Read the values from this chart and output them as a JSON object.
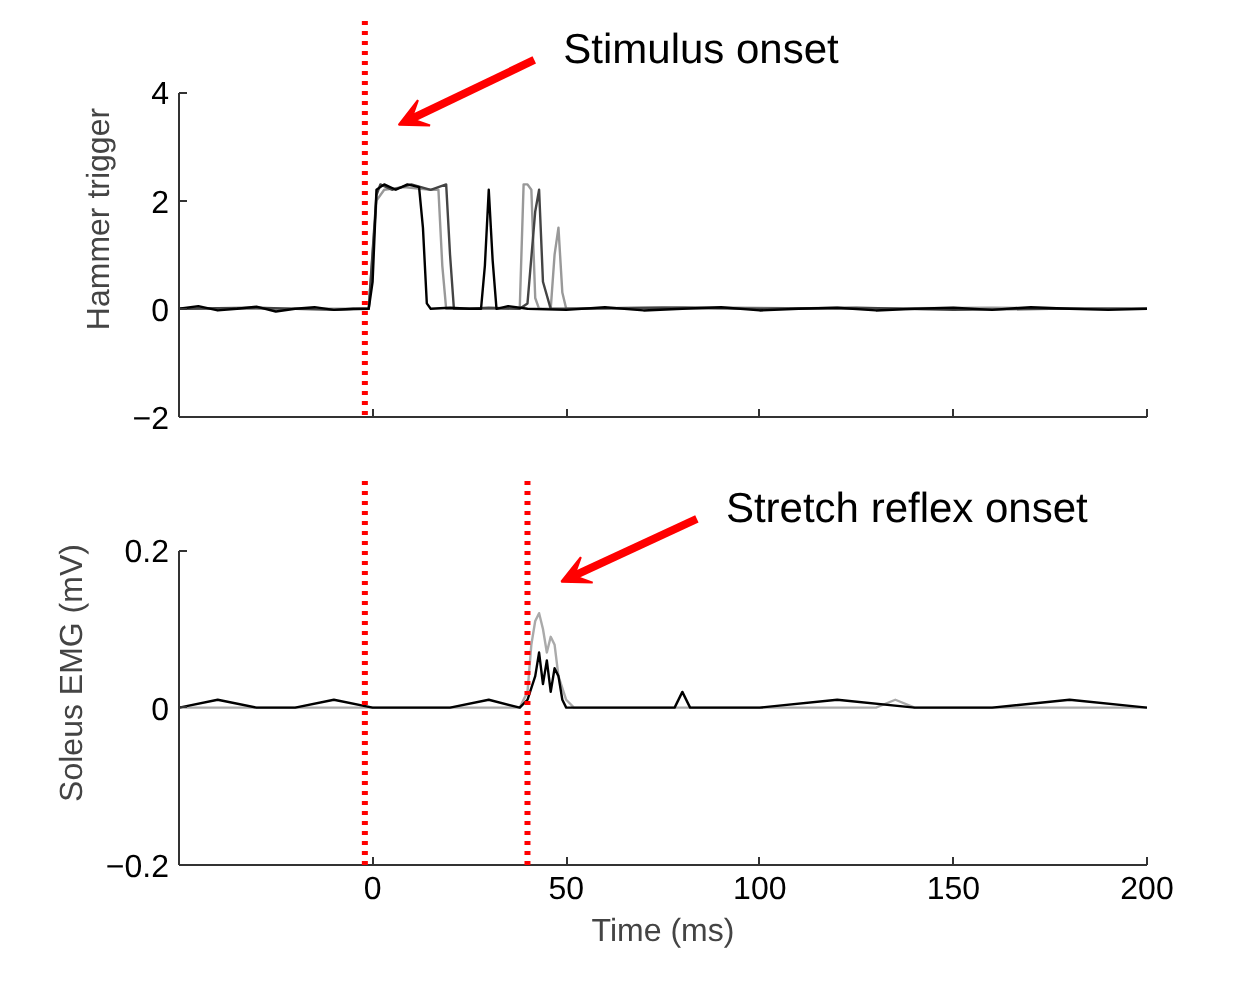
{
  "chart_data": [
    {
      "type": "line",
      "ylabel": "Hammer trigger",
      "xlim": [
        -50,
        200
      ],
      "xticks": [
        0,
        50,
        100,
        150,
        200
      ],
      "ylim": [
        -2,
        4
      ],
      "yticks": [
        -2,
        0,
        2,
        4
      ],
      "tick_labels": "y",
      "series": [
        {
          "color": "#999999",
          "x": [
            -50,
            -1,
            1,
            3,
            8,
            15,
            17,
            18,
            19,
            25,
            38,
            39,
            40,
            41,
            42,
            43,
            46,
            47,
            48,
            49,
            50,
            80,
            120,
            160,
            200
          ],
          "values": [
            0,
            0,
            2.0,
            2.2,
            2.25,
            2.2,
            2.2,
            0.8,
            0,
            0,
            0,
            2.3,
            2.3,
            2.2,
            0.2,
            0,
            0,
            1.0,
            1.5,
            0.3,
            0,
            0.03,
            0,
            0.02,
            0
          ]
        },
        {
          "color": "#444444",
          "x": [
            -50,
            -30,
            -10,
            -1,
            1,
            2,
            5,
            10,
            15,
            19,
            20,
            21,
            25,
            30,
            38,
            40,
            42,
            43,
            44,
            46,
            50,
            75,
            100,
            125,
            150,
            175,
            200
          ],
          "values": [
            0,
            0.02,
            -0.02,
            0,
            2.1,
            2.3,
            2.2,
            2.3,
            2.2,
            2.3,
            1.0,
            0,
            0,
            0.02,
            0,
            0.1,
            1.8,
            2.2,
            0.5,
            0,
            0,
            0.02,
            0,
            0.02,
            -0.02,
            0,
            0
          ]
        },
        {
          "color": "#000000",
          "x": [
            -50,
            -45,
            -40,
            -35,
            -30,
            -25,
            -20,
            -15,
            -10,
            -5,
            -1,
            0,
            1,
            3,
            6,
            9,
            12,
            13,
            14,
            15,
            20,
            25,
            28,
            29,
            30,
            31,
            32,
            35,
            40,
            50,
            60,
            70,
            80,
            90,
            100,
            110,
            120,
            130,
            140,
            150,
            160,
            170,
            180,
            190,
            200
          ],
          "values": [
            0,
            0.05,
            -0.03,
            0,
            0.04,
            -0.05,
            0,
            0.03,
            -0.02,
            0,
            0,
            0.5,
            2.2,
            2.3,
            2.2,
            2.3,
            2.25,
            1.5,
            0.1,
            0,
            0.02,
            0,
            0,
            0.8,
            2.2,
            0.9,
            0,
            0.05,
            0,
            -0.02,
            0.03,
            -0.03,
            0,
            0.03,
            -0.03,
            0,
            0.02,
            -0.03,
            0,
            0.02,
            -0.02,
            0.03,
            0,
            -0.02,
            0
          ]
        }
      ],
      "ref_lines": [
        {
          "axis": "x",
          "value": -2,
          "color": "#ff0000",
          "line_style": "dotted"
        }
      ],
      "annotations": [
        "Stimulus onset"
      ]
    },
    {
      "type": "line",
      "xlabel": "Time (ms)",
      "ylabel": "Soleus EMG (mV)",
      "xlim": [
        -50,
        200
      ],
      "xticks": [
        0,
        50,
        100,
        150,
        200
      ],
      "ylim": [
        -0.2,
        0.2
      ],
      "yticks": [
        -0.2,
        0,
        0.2
      ],
      "series": [
        {
          "color": "#aaaaaa",
          "x": [
            -50,
            0,
            38,
            40,
            41,
            42,
            43,
            44,
            45,
            46,
            47,
            48,
            50,
            52,
            100,
            130,
            135,
            140,
            200
          ],
          "values": [
            0,
            0,
            0,
            0.02,
            0.08,
            0.11,
            0.12,
            0.1,
            0.07,
            0.09,
            0.08,
            0.04,
            0.01,
            0,
            0,
            0,
            0.01,
            0,
            0
          ]
        },
        {
          "color": "#000000",
          "x": [
            -50,
            -40,
            -30,
            -20,
            -10,
            0,
            10,
            20,
            30,
            38,
            40,
            42,
            43,
            44,
            45,
            46,
            47,
            48,
            49,
            50,
            52,
            60,
            70,
            78,
            80,
            82,
            90,
            100,
            120,
            140,
            160,
            180,
            200
          ],
          "values": [
            0,
            0.01,
            0,
            0,
            0.01,
            0,
            0,
            0,
            0.01,
            0,
            0.01,
            0.04,
            0.07,
            0.03,
            0.06,
            0.02,
            0.05,
            0.04,
            0.01,
            0,
            0,
            0,
            0,
            0,
            0.02,
            0,
            0,
            0,
            0.01,
            0,
            0,
            0.01,
            0
          ]
        }
      ],
      "ref_lines": [
        {
          "axis": "x",
          "value": -2,
          "color": "#ff0000",
          "line_style": "dotted"
        },
        {
          "axis": "x",
          "value": 40,
          "color": "#ff0000",
          "line_style": "dotted"
        }
      ],
      "annotations": [
        "Stretch reflex onset"
      ]
    }
  ]
}
